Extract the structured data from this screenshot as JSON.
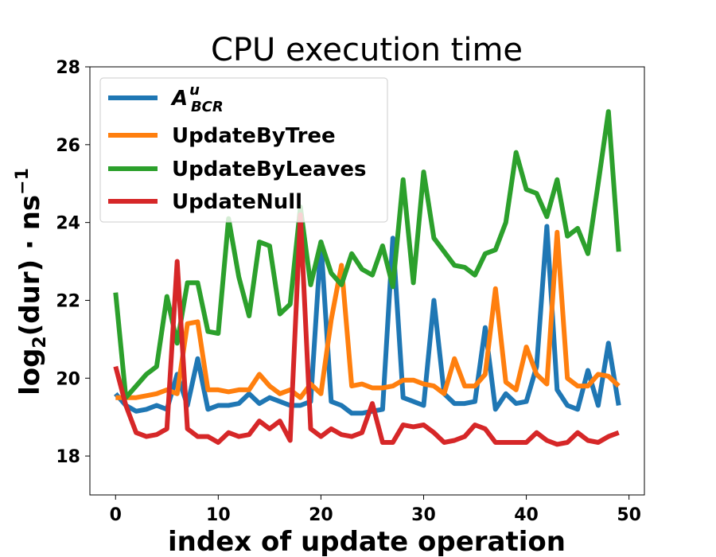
{
  "chart_data": {
    "type": "line",
    "title": "CPU execution time",
    "xlabel": "index of update operation",
    "ylabel": "log2(dur) · ns−1",
    "ylabel_parts": {
      "pre": "log",
      "sub": "2",
      "mid": "(dur) · ns",
      "sup": "−1"
    },
    "xlim": [
      -2.5,
      51.5
    ],
    "ylim": [
      17,
      28
    ],
    "xticks": [
      0,
      10,
      20,
      30,
      40,
      50
    ],
    "yticks": [
      18,
      20,
      22,
      24,
      26,
      28
    ],
    "grid": false,
    "legend_position": "top-left",
    "x": [
      0,
      1,
      2,
      3,
      4,
      5,
      6,
      7,
      8,
      9,
      10,
      11,
      12,
      13,
      14,
      15,
      16,
      17,
      18,
      19,
      20,
      21,
      22,
      23,
      24,
      25,
      26,
      27,
      28,
      29,
      30,
      31,
      32,
      33,
      34,
      35,
      36,
      37,
      38,
      39,
      40,
      41,
      42,
      43,
      44,
      45,
      46,
      47,
      48,
      49
    ],
    "series": [
      {
        "name": "A^u_BCR",
        "label_main": "A",
        "label_sup": "u",
        "label_sub": "BCR",
        "color": "#1f77b4",
        "values": [
          19.6,
          19.3,
          19.15,
          19.2,
          19.3,
          19.2,
          20.1,
          19.3,
          20.5,
          19.2,
          19.3,
          19.3,
          19.35,
          19.6,
          19.35,
          19.5,
          19.4,
          19.3,
          19.3,
          19.4,
          23.5,
          19.4,
          19.3,
          19.1,
          19.1,
          19.15,
          19.2,
          23.6,
          19.5,
          19.4,
          19.3,
          22.0,
          19.6,
          19.35,
          19.35,
          19.4,
          21.3,
          19.2,
          19.6,
          19.35,
          19.4,
          20.3,
          23.9,
          19.7,
          19.3,
          19.2,
          20.2,
          19.3,
          20.9,
          19.3
        ]
      },
      {
        "name": "UpdateByTree",
        "color": "#ff7f0e",
        "values": [
          19.5,
          19.5,
          19.5,
          19.55,
          19.6,
          19.7,
          19.6,
          21.4,
          21.45,
          19.7,
          19.7,
          19.65,
          19.7,
          19.7,
          20.1,
          19.8,
          19.6,
          19.7,
          19.5,
          19.85,
          19.6,
          21.5,
          22.9,
          19.8,
          19.85,
          19.75,
          19.75,
          19.8,
          19.95,
          19.95,
          19.85,
          19.8,
          19.6,
          20.5,
          19.8,
          19.8,
          20.1,
          22.3,
          19.9,
          19.7,
          20.8,
          20.1,
          19.85,
          23.75,
          20.0,
          19.8,
          19.8,
          20.1,
          20.05,
          19.8
        ]
      },
      {
        "name": "UpdateByLeaves",
        "color": "#2ca02c",
        "values": [
          22.2,
          19.5,
          19.8,
          20.1,
          20.3,
          22.1,
          20.9,
          22.45,
          22.45,
          21.2,
          21.15,
          24.1,
          22.6,
          21.6,
          23.5,
          23.4,
          21.65,
          21.9,
          24.4,
          22.4,
          23.5,
          22.7,
          22.4,
          23.2,
          22.8,
          22.65,
          23.4,
          22.35,
          25.1,
          22.45,
          25.3,
          23.6,
          23.25,
          22.9,
          22.85,
          22.65,
          23.2,
          23.3,
          24.0,
          25.8,
          24.85,
          24.75,
          24.15,
          25.1,
          23.65,
          23.85,
          23.2,
          25.0,
          26.85,
          23.25
        ]
      },
      {
        "name": "UpdateNull",
        "color": "#d62728",
        "values": [
          20.3,
          19.3,
          18.6,
          18.5,
          18.55,
          18.7,
          23.0,
          18.7,
          18.5,
          18.5,
          18.35,
          18.6,
          18.5,
          18.55,
          18.9,
          18.7,
          18.9,
          18.4,
          24.2,
          18.7,
          18.5,
          18.7,
          18.55,
          18.5,
          18.6,
          19.35,
          18.35,
          18.35,
          18.8,
          18.75,
          18.8,
          18.6,
          18.35,
          18.4,
          18.5,
          18.8,
          18.7,
          18.35,
          18.35,
          18.35,
          18.35,
          18.6,
          18.4,
          18.3,
          18.35,
          18.6,
          18.4,
          18.35,
          18.5,
          18.6
        ]
      }
    ]
  }
}
